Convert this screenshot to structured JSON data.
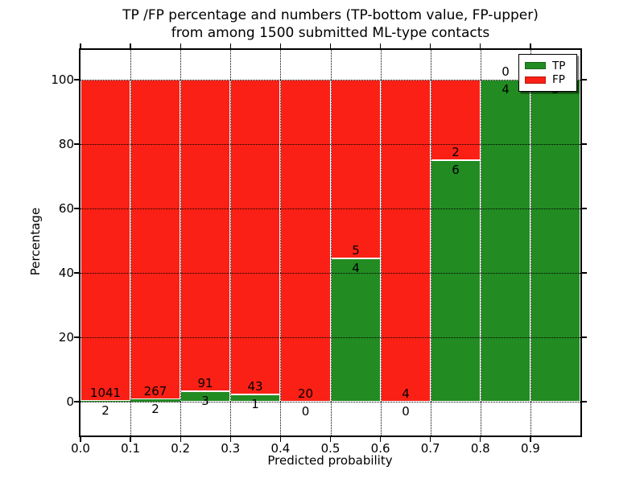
{
  "title": {
    "line1": "TP /FP percentage and numbers (TP-bottom value, FP-upper)",
    "line2": "from among 1500 submitted ML-type contacts"
  },
  "axes": {
    "x_label": "Predicted probability",
    "y_label": "Percentage",
    "x_tick_labels": [
      "0.0",
      "0.1",
      "0.2",
      "0.3",
      "0.4",
      "0.5",
      "0.6",
      "0.7",
      "0.8",
      "0.9"
    ],
    "y_tick_labels": [
      "0",
      "20",
      "40",
      "60",
      "80",
      "100"
    ]
  },
  "legend": {
    "position": "upper right",
    "items": [
      {
        "label": "TP",
        "color": "#228b22"
      },
      {
        "label": "FP",
        "color": "#fa2015"
      }
    ]
  },
  "colors": {
    "tp": "#228b22",
    "fp": "#fa2015",
    "grid": "#000000",
    "background": "#ffffff"
  },
  "chart_data": {
    "type": "bar",
    "stacked": true,
    "title": "TP /FP percentage and numbers (TP-bottom value, FP-upper) from among 1500 submitted ML-type contacts",
    "xlabel": "Predicted probability",
    "ylabel": "Percentage",
    "bin_edges": [
      0.0,
      0.1,
      0.2,
      0.3,
      0.4,
      0.5,
      0.6,
      0.7,
      0.8,
      0.9,
      1.0
    ],
    "categories": [
      "0.0-0.1",
      "0.1-0.2",
      "0.2-0.3",
      "0.3-0.4",
      "0.4-0.5",
      "0.5-0.6",
      "0.6-0.7",
      "0.7-0.8",
      "0.8-0.9",
      "0.9-1.0"
    ],
    "series": [
      {
        "name": "TP",
        "color": "#228b22",
        "counts": [
          2,
          2,
          3,
          1,
          0,
          4,
          0,
          6,
          4,
          5
        ]
      },
      {
        "name": "FP",
        "color": "#fa2015",
        "counts": [
          1041,
          267,
          91,
          43,
          20,
          5,
          4,
          2,
          0,
          0
        ]
      }
    ],
    "total_contacts": 1500,
    "note": "bars are stacked percentages TP/(TP+FP)*100 and FP/(TP+FP)*100; count labels printed at segment boundary",
    "ylim": [
      -10.5,
      109.75
    ],
    "xlim": [
      0.0,
      1.0
    ],
    "grid": true,
    "legend_position": "upper right"
  }
}
